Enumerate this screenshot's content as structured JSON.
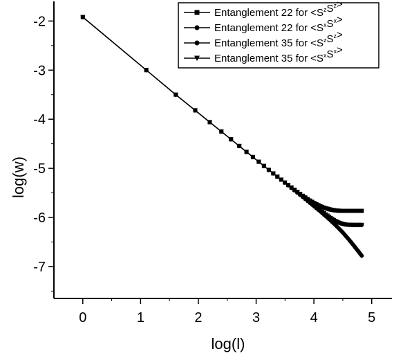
{
  "chart_data": {
    "type": "line",
    "title": "",
    "xlabel": "log(l)",
    "ylabel": "log(w)",
    "xlim": [
      -0.5,
      5.35
    ],
    "ylim": [
      -7.65,
      -1.6
    ],
    "x_ticks": [
      0,
      1,
      2,
      3,
      4,
      5
    ],
    "y_ticks": [
      -2,
      -3,
      -4,
      -5,
      -6,
      -7
    ],
    "x_tick_labels": [
      "0",
      "1",
      "2",
      "3",
      "4",
      "5"
    ],
    "y_tick_labels": [
      "-2",
      "-3",
      "-4",
      "-5",
      "-6",
      "-7"
    ],
    "grid": false,
    "legend_position": "top-right",
    "x": [
      0,
      1.099,
      1.609,
      1.946,
      2.197,
      2.398,
      2.565,
      2.708,
      2.833,
      2.944,
      3.045,
      3.135,
      3.219,
      3.296,
      3.367,
      3.434,
      3.497,
      3.555,
      3.611,
      3.664,
      3.714,
      3.761,
      3.807,
      3.85,
      3.892,
      3.932,
      3.97,
      4.007,
      4.043,
      4.078,
      4.111,
      4.143,
      4.174,
      4.205,
      4.234,
      4.263,
      4.29,
      4.317,
      4.344,
      4.369,
      4.394,
      4.419,
      4.443,
      4.466,
      4.489,
      4.511,
      4.533,
      4.554,
      4.575,
      4.595,
      4.615,
      4.635,
      4.654,
      4.673,
      4.691,
      4.71,
      4.727,
      4.745,
      4.762,
      4.779,
      4.796,
      4.812,
      4.828
    ],
    "series": [
      {
        "name": "Entanglement 22 for <S^zS^z>",
        "legend_base": "Entanglement 22 for <S",
        "legend_sup1": "z",
        "legend_mid": "S",
        "legend_sup2": "z",
        "legend_end": ">",
        "marker": "square",
        "y": [
          -1.92,
          -3.0,
          -3.5,
          -3.82,
          -4.06,
          -4.25,
          -4.41,
          -4.546,
          -4.665,
          -4.771,
          -4.867,
          -4.952,
          -5.032,
          -5.104,
          -5.17,
          -5.23,
          -5.29,
          -5.34,
          -5.39,
          -5.436,
          -5.48,
          -5.52,
          -5.56,
          -5.592,
          -5.626,
          -5.656,
          -5.682,
          -5.707,
          -5.73,
          -5.75,
          -5.77,
          -5.785,
          -5.8,
          -5.812,
          -5.822,
          -5.832,
          -5.84,
          -5.846,
          -5.852,
          -5.856,
          -5.86,
          -5.862,
          -5.864,
          -5.866,
          -5.866,
          -5.866,
          -5.866,
          -5.866,
          -5.866,
          -5.866,
          -5.866,
          -5.866,
          -5.866,
          -5.866,
          -5.866,
          -5.866,
          -5.866,
          -5.866,
          -5.866,
          -5.866,
          -5.866,
          -5.866,
          -5.866
        ]
      },
      {
        "name": "Entanglement 22 for <S^xS^x>",
        "legend_base": "Entanglement 22 for <S",
        "legend_sup1": "x",
        "legend_mid": "S",
        "legend_sup2": "x",
        "legend_end": ">",
        "marker": "circle",
        "y": [
          -1.92,
          -3.0,
          -3.5,
          -3.82,
          -4.06,
          -4.25,
          -4.41,
          -4.546,
          -4.665,
          -4.771,
          -4.867,
          -4.952,
          -5.032,
          -5.104,
          -5.17,
          -5.232,
          -5.292,
          -5.345,
          -5.397,
          -5.446,
          -5.493,
          -5.536,
          -5.579,
          -5.619,
          -5.658,
          -5.695,
          -5.729,
          -5.763,
          -5.796,
          -5.828,
          -5.857,
          -5.886,
          -5.914,
          -5.94,
          -5.965,
          -5.99,
          -6.012,
          -6.033,
          -6.053,
          -6.071,
          -6.087,
          -6.101,
          -6.113,
          -6.123,
          -6.131,
          -6.137,
          -6.142,
          -6.146,
          -6.148,
          -6.15,
          -6.151,
          -6.152,
          -6.152,
          -6.153,
          -6.153,
          -6.153,
          -6.153,
          -6.153,
          -6.153,
          -6.153,
          -6.153,
          -6.153,
          -6.153
        ]
      },
      {
        "name": "Entanglement 35 for <S^zS^z>",
        "legend_base": "Entanglement 35 for <S",
        "legend_sup1": "z",
        "legend_mid": "S",
        "legend_sup2": "z",
        "legend_end": ">",
        "marker": "circle",
        "y": [
          -1.92,
          -3.0,
          -3.5,
          -3.82,
          -4.06,
          -4.25,
          -4.41,
          -4.546,
          -4.665,
          -4.771,
          -4.867,
          -4.952,
          -5.032,
          -5.104,
          -5.17,
          -5.232,
          -5.292,
          -5.347,
          -5.4,
          -5.45,
          -5.497,
          -5.542,
          -5.586,
          -5.627,
          -5.667,
          -5.705,
          -5.742,
          -5.778,
          -5.813,
          -5.847,
          -5.88,
          -5.912,
          -5.943,
          -5.975,
          -6.005,
          -6.036,
          -6.064,
          -6.093,
          -6.123,
          -6.151,
          -6.18,
          -6.21,
          -6.238,
          -6.266,
          -6.295,
          -6.323,
          -6.352,
          -6.38,
          -6.409,
          -6.436,
          -6.464,
          -6.493,
          -6.52,
          -6.548,
          -6.574,
          -6.603,
          -6.628,
          -6.655,
          -6.68,
          -6.706,
          -6.732,
          -6.757,
          -6.78
        ]
      },
      {
        "name": "Entanglement 35 for <S^xS^x>",
        "legend_base": "Entanglement 35 for <S",
        "legend_sup1": "x",
        "legend_mid": "S",
        "legend_sup2": "x",
        "legend_end": ">",
        "marker": "triangle-down",
        "y": [
          -1.92,
          -3.0,
          -3.5,
          -3.82,
          -4.06,
          -4.25,
          -4.41,
          -4.546,
          -4.665,
          -4.771,
          -4.867,
          -4.952,
          -5.032,
          -5.104,
          -5.17,
          -5.232,
          -5.292,
          -5.345,
          -5.397,
          -5.446,
          -5.493,
          -5.536,
          -5.579,
          -5.619,
          -5.658,
          -5.695,
          -5.729,
          -5.763,
          -5.796,
          -5.828,
          -5.857,
          -5.886,
          -5.914,
          -5.94,
          -5.965,
          -5.99,
          -6.012,
          -6.033,
          -6.053,
          -6.071,
          -6.087,
          -6.101,
          -6.113,
          -6.123,
          -6.131,
          -6.137,
          -6.142,
          -6.146,
          -6.148,
          -6.15,
          -6.151,
          -6.152,
          -6.152,
          -6.153,
          -6.153,
          -6.153,
          -6.153,
          -6.153,
          -6.153,
          -6.153,
          -6.153,
          -6.153,
          -6.153
        ]
      }
    ]
  }
}
